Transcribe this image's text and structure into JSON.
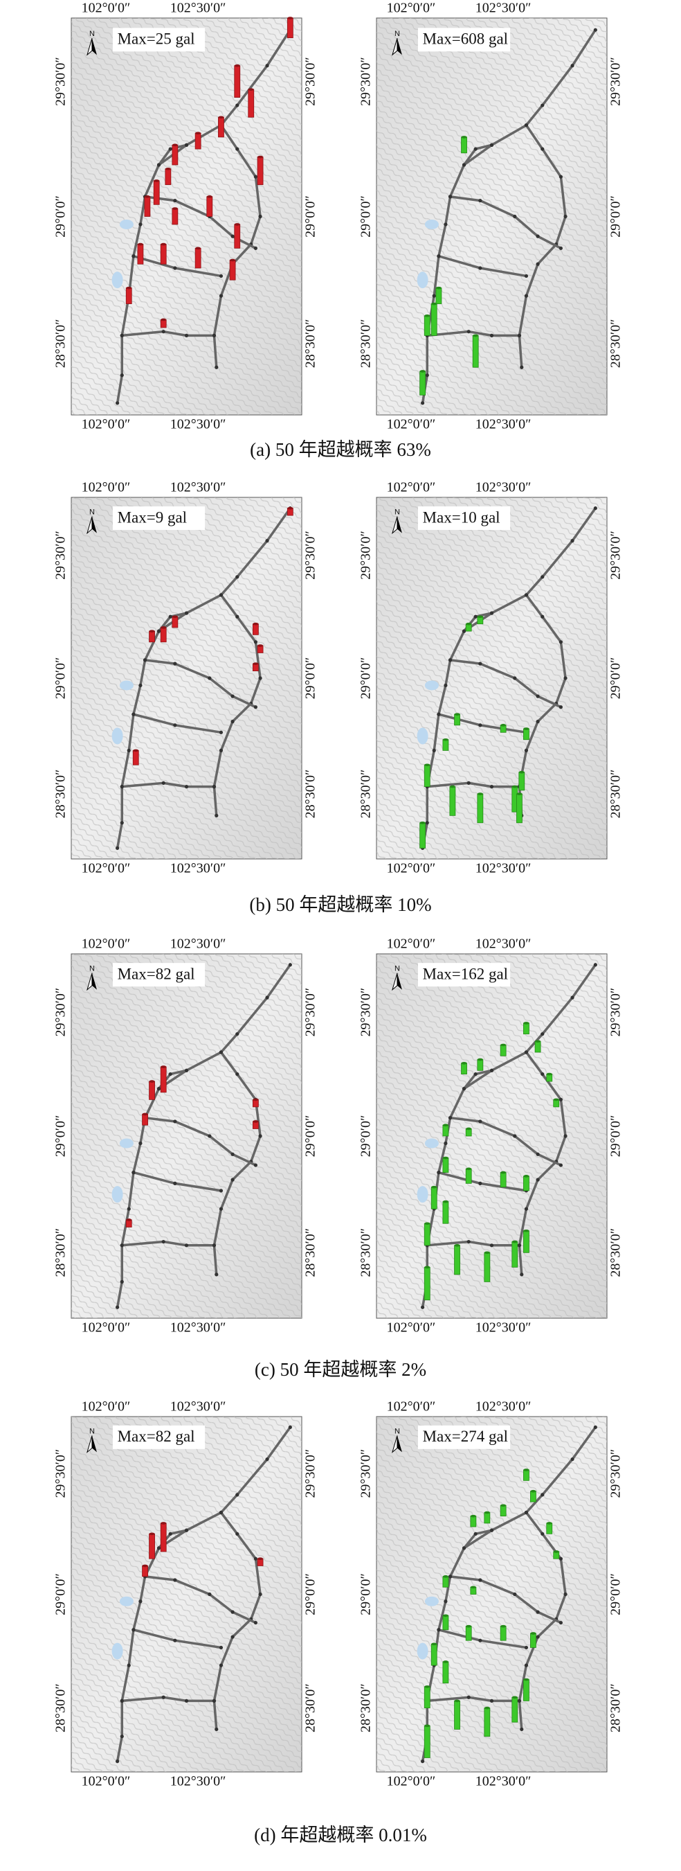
{
  "panels": [
    {
      "caption": "(a) 50 年超越概率 63%",
      "maps": [
        {
          "max_label": "Max=25 gal",
          "north": "N",
          "lon_top": [
            "102°0′0″",
            "102°30′0″"
          ],
          "lon_bottom": [
            "102°0′0″",
            "102°30′0″"
          ],
          "lat_left": [
            "29°30′0″",
            "29°0′0″",
            "28°30′0″"
          ],
          "lat_right": [
            "29°30′0″",
            "29°0′0″",
            "28°30′0″"
          ]
        },
        {
          "max_label": "Max=608 gal",
          "north": "N",
          "lon_top": [
            "102°0′0″",
            "102°30′0″"
          ],
          "lon_bottom": [
            "102°0′0″",
            "102°30′0″"
          ],
          "lat_left": [
            "29°30′0″",
            "29°0′0″",
            "28°30′0″"
          ],
          "lat_right": [
            "29°30′0″",
            "29°0′0″",
            "28°30′0″"
          ]
        }
      ]
    },
    {
      "caption": "(b) 50 年超越概率 10%",
      "maps": [
        {
          "max_label": "Max=9 gal",
          "north": "N",
          "lon_top": [
            "102°0′0″",
            "102°30′0″"
          ],
          "lon_bottom": [
            "102°0′0″",
            "102°30′0″"
          ],
          "lat_left": [
            "29°30′0″",
            "29°0′0″",
            "28°30′0″"
          ],
          "lat_right": [
            "29°30′0″",
            "29°0′0″",
            "28°30′0″"
          ]
        },
        {
          "max_label": "Max=10 gal",
          "north": "N",
          "lon_top": [
            "102°0′0″",
            "102°30′0″"
          ],
          "lon_bottom": [
            "102°0′0″",
            "102°30′0″"
          ],
          "lat_left": [
            "29°30′0″",
            "29°0′0″",
            "28°30′0″"
          ],
          "lat_right": [
            "29°30′0″",
            "29°0′0″",
            "28°30′0″"
          ]
        }
      ]
    },
    {
      "caption": "(c) 50 年超越概率 2%",
      "maps": [
        {
          "max_label": "Max=82 gal",
          "north": "N",
          "lon_top": [
            "102°0′0″",
            "102°30′0″"
          ],
          "lon_bottom": [
            "102°0′0″",
            "102°30′0″"
          ],
          "lat_left": [
            "29°30′0″",
            "29°0′0″",
            "28°30′0″"
          ],
          "lat_right": [
            "29°30′0″",
            "29°0′0″",
            "28°30′0″"
          ]
        },
        {
          "max_label": "Max=162 gal",
          "north": "N",
          "lon_top": [
            "102°0′0″",
            "102°30′0″"
          ],
          "lon_bottom": [
            "102°0′0″",
            "102°30′0″"
          ],
          "lat_left": [
            "29°30′0″",
            "29°0′0″",
            "28°30′0″"
          ],
          "lat_right": [
            "29°30′0″",
            "29°0′0″",
            "28°30′0″"
          ]
        }
      ]
    },
    {
      "caption": "(d)  年超越概率 0.01%",
      "maps": [
        {
          "max_label": "Max=82 gal",
          "north": "N",
          "lon_top": [
            "102°0′0″",
            "102°30′0″"
          ],
          "lon_bottom": [
            "102°0′0″",
            "102°30′0″"
          ],
          "lat_left": [
            "29°30′0″",
            "29°0′0″",
            "28°30′0″"
          ],
          "lat_right": [
            "29°30′0″",
            "29°0′0″",
            "28°30′0″"
          ]
        },
        {
          "max_label": "Max=274 gal",
          "north": "N",
          "lon_top": [
            "102°0′0″",
            "102°30′0″"
          ],
          "lon_bottom": [
            "102°0′0″",
            "102°30′0″"
          ],
          "lat_left": [
            "29°30′0″",
            "29°0′0″",
            "28°30′0″"
          ],
          "lat_right": [
            "29°30′0″",
            "29°0′0″",
            "28°30′0″"
          ]
        }
      ]
    }
  ]
}
